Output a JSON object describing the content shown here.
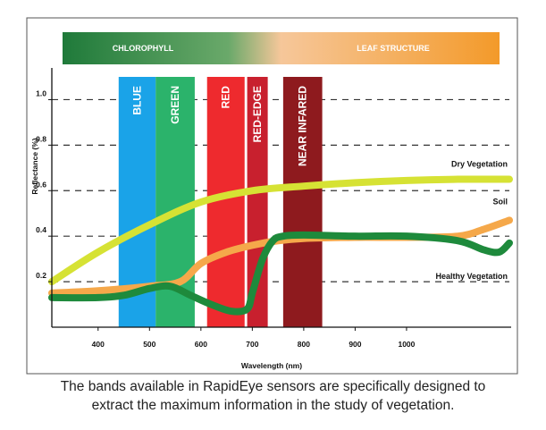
{
  "chart_data": {
    "type": "line",
    "xlabel": "Wavelength (nm)",
    "ylabel": "Reflectance (%)",
    "xlim": [
      310,
      1200
    ],
    "ylim": [
      0.0,
      1.1
    ],
    "x_ticks": [
      {
        "value": 400,
        "label": "400"
      },
      {
        "value": 500,
        "label": "500"
      },
      {
        "value": 600,
        "label": "600"
      },
      {
        "value": 700,
        "label": "700"
      },
      {
        "value": 800,
        "label": "800"
      },
      {
        "value": 900,
        "label": "900"
      },
      {
        "value": 1000,
        "label": "1000"
      }
    ],
    "y_ticks": [
      {
        "value": 0.2,
        "label": "0.2"
      },
      {
        "value": 0.4,
        "label": "0.4"
      },
      {
        "value": 0.6,
        "label": "0.6"
      },
      {
        "value": 0.8,
        "label": "0.8"
      },
      {
        "value": 1.0,
        "label": "1.0"
      }
    ],
    "grid": "horizontal dashed",
    "bands": [
      {
        "label": "BLUE",
        "start": 440,
        "end": 512,
        "color": "#1aa3e8"
      },
      {
        "label": "GREEN",
        "start": 512,
        "end": 588,
        "color": "#2bb36b"
      },
      {
        "label": "RED",
        "start": 612,
        "end": 685,
        "color": "#ee2a2e"
      },
      {
        "label": "RED-EDGE",
        "start": 690,
        "end": 730,
        "color": "#c8202e"
      },
      {
        "label": "NEAR INFARED",
        "start": 760,
        "end": 836,
        "color": "#8e1a1e"
      }
    ],
    "top_bar": {
      "left_label": "CHLOROPHYLL",
      "right_label": "LEAF STRUCTURE",
      "start_color": "#1f7a3a",
      "end_color": "#f39a2a"
    },
    "series": [
      {
        "name": "Dry Vegetation",
        "color": "#d6e234",
        "x": [
          310,
          400,
          500,
          600,
          700,
          800,
          900,
          1000,
          1100,
          1200
        ],
        "y": [
          0.2,
          0.33,
          0.45,
          0.55,
          0.6,
          0.62,
          0.635,
          0.645,
          0.65,
          0.65
        ]
      },
      {
        "name": "Soil",
        "color": "#f5a84a",
        "x": [
          310,
          400,
          500,
          560,
          600,
          650,
          700,
          750,
          800,
          900,
          1000,
          1100,
          1150,
          1200
        ],
        "y": [
          0.15,
          0.16,
          0.18,
          0.2,
          0.28,
          0.33,
          0.36,
          0.38,
          0.39,
          0.395,
          0.395,
          0.4,
          0.43,
          0.47
        ]
      },
      {
        "name": "Healthy Vegetation",
        "color": "#1e8a3c",
        "x": [
          310,
          400,
          450,
          500,
          540,
          580,
          620,
          660,
          690,
          700,
          720,
          740,
          760,
          800,
          900,
          1000,
          1100,
          1150,
          1180,
          1200
        ],
        "y": [
          0.13,
          0.13,
          0.14,
          0.17,
          0.18,
          0.14,
          0.1,
          0.07,
          0.08,
          0.15,
          0.3,
          0.38,
          0.4,
          0.405,
          0.4,
          0.4,
          0.38,
          0.34,
          0.33,
          0.37
        ]
      }
    ]
  },
  "caption": {
    "line1": "The bands available in RapidEye  sensors are specifically designed to",
    "line2": "extract the maximum information in the study of vegetation."
  }
}
